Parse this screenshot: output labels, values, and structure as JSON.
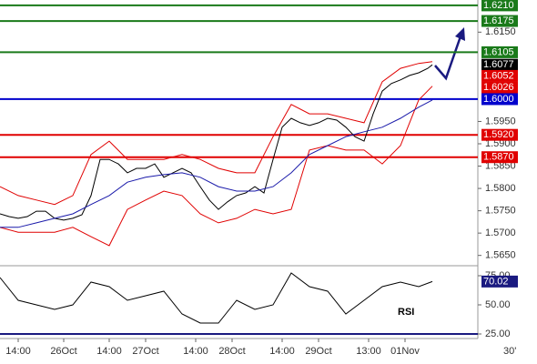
{
  "chart_data": [
    {
      "type": "line",
      "xlim": [
        0,
        105
      ],
      "ylim": [
        1.5631,
        1.6222
      ],
      "xticks": [
        {
          "value": 4,
          "label": "14:00"
        },
        {
          "value": 14,
          "label": "26Oct"
        },
        {
          "value": 24,
          "label": "14:00"
        },
        {
          "value": 32,
          "label": "27Oct"
        },
        {
          "value": 43,
          "label": "14:00"
        },
        {
          "value": 51,
          "label": "28Oct"
        },
        {
          "value": 62,
          "label": "14:00"
        },
        {
          "value": 70,
          "label": "29Oct"
        },
        {
          "value": 81,
          "label": "13:00"
        },
        {
          "value": 89,
          "label": "01Nov"
        }
      ],
      "timeframe": "30'",
      "yticks": [
        {
          "value": 1.615,
          "label": "1.6150"
        },
        {
          "value": 1.595,
          "label": "1.5950"
        },
        {
          "value": 1.59,
          "label": "1.5900"
        },
        {
          "value": 1.585,
          "label": "1.5850"
        },
        {
          "value": 1.58,
          "label": "1.5800"
        },
        {
          "value": 1.575,
          "label": "1.5750"
        },
        {
          "value": 1.57,
          "label": "1.5700"
        },
        {
          "value": 1.565,
          "label": "1.5650"
        }
      ],
      "levels": [
        {
          "value": 1.621,
          "label": "1.6210",
          "color": "#1a7a1a",
          "line": true
        },
        {
          "value": 1.6175,
          "label": "1.6175",
          "color": "#1a7a1a",
          "line": true
        },
        {
          "value": 1.6105,
          "label": "1.6105",
          "color": "#1a7a1a",
          "line": true
        },
        {
          "value": 1.6077,
          "label": "1.6077",
          "color": "#000000",
          "line": false
        },
        {
          "value": 1.6052,
          "label": "1.6052",
          "color": "#e00000",
          "line": false
        },
        {
          "value": 1.6026,
          "label": "1.6026",
          "color": "#e00000",
          "line": false
        },
        {
          "value": 1.6,
          "label": "1.6000",
          "color": "#0000cc",
          "line": true
        },
        {
          "value": 1.592,
          "label": "1.5920",
          "color": "#e00000",
          "line": true
        },
        {
          "value": 1.587,
          "label": "1.5870",
          "color": "#e00000",
          "line": true
        }
      ],
      "series": [
        {
          "color": "#000000",
          "x": [
            0,
            2,
            4,
            6,
            8,
            10,
            12,
            14,
            16,
            18,
            20,
            22,
            24,
            26,
            28,
            30,
            32,
            34,
            36,
            38,
            40,
            42,
            44,
            46,
            48,
            50,
            52,
            54,
            56,
            58,
            60,
            62,
            64,
            66,
            68,
            70,
            72,
            74,
            76,
            78,
            80,
            82,
            84,
            86,
            88,
            90,
            92,
            94,
            95
          ],
          "values": [
            1.5743,
            1.5737,
            1.5733,
            1.5737,
            1.5749,
            1.5749,
            1.5733,
            1.5729,
            1.5733,
            1.5741,
            1.5784,
            1.5865,
            1.5865,
            1.5855,
            1.5835,
            1.5845,
            1.5845,
            1.5855,
            1.5825,
            1.5835,
            1.5845,
            1.5835,
            1.5804,
            1.5774,
            1.5753,
            1.577,
            1.5784,
            1.579,
            1.5804,
            1.579,
            1.5865,
            1.5937,
            1.5957,
            1.5947,
            1.5941,
            1.5947,
            1.5957,
            1.5953,
            1.5937,
            1.5916,
            1.5906,
            1.5967,
            1.6018,
            1.6035,
            1.6043,
            1.6053,
            1.6059,
            1.6069,
            1.6077
          ]
        },
        {
          "color": "#e00000",
          "x": [
            0,
            4,
            8,
            12,
            16,
            20,
            24,
            28,
            32,
            36,
            40,
            44,
            48,
            52,
            56,
            60,
            64,
            68,
            72,
            76,
            80,
            84,
            88,
            92,
            95
          ],
          "values": [
            1.5804,
            1.5784,
            1.5774,
            1.5764,
            1.5784,
            1.5876,
            1.5906,
            1.5865,
            1.5865,
            1.5865,
            1.5876,
            1.5865,
            1.5845,
            1.5835,
            1.5835,
            1.5916,
            1.5988,
            1.5967,
            1.5967,
            1.5957,
            1.5947,
            1.6039,
            1.6069,
            1.608,
            1.6084
          ]
        },
        {
          "color": "#e00000",
          "x": [
            0,
            4,
            8,
            12,
            16,
            20,
            24,
            28,
            32,
            36,
            40,
            44,
            48,
            52,
            56,
            60,
            64,
            68,
            72,
            76,
            80,
            84,
            88,
            92,
            95
          ],
          "values": [
            1.5713,
            1.5702,
            1.5702,
            1.5702,
            1.5713,
            1.5692,
            1.5672,
            1.5753,
            1.5774,
            1.5794,
            1.5784,
            1.5743,
            1.5723,
            1.5733,
            1.5753,
            1.5743,
            1.5753,
            1.5886,
            1.5896,
            1.5886,
            1.5886,
            1.5855,
            1.5896,
            1.5998,
            1.6029
          ]
        },
        {
          "color": "#1a1aaa",
          "x": [
            0,
            4,
            8,
            12,
            16,
            20,
            24,
            28,
            32,
            36,
            40,
            44,
            48,
            52,
            56,
            60,
            64,
            68,
            72,
            76,
            80,
            84,
            88,
            92,
            95
          ],
          "values": [
            1.5713,
            1.5713,
            1.5723,
            1.5733,
            1.5743,
            1.5764,
            1.5784,
            1.5814,
            1.5825,
            1.5831,
            1.5835,
            1.5825,
            1.5804,
            1.5794,
            1.5794,
            1.5804,
            1.5835,
            1.5876,
            1.5896,
            1.5916,
            1.5927,
            1.5937,
            1.5957,
            1.5982,
            1.5998
          ]
        }
      ]
    },
    {
      "type": "line",
      "label": "RSI",
      "xlim": [
        0,
        105
      ],
      "ylim": [
        21.1,
        82.8
      ],
      "yticks": [
        {
          "value": 75,
          "label": "75.00"
        },
        {
          "value": 50,
          "label": "50.00"
        },
        {
          "value": 25,
          "label": "25.00"
        }
      ],
      "levels": [
        {
          "value": 70.02,
          "label": "70.02",
          "color": "#1a1a80",
          "line": false
        },
        {
          "value": 25,
          "color": "#1a1a80",
          "line": true
        }
      ],
      "series": [
        {
          "color": "#000000",
          "x": [
            0,
            4,
            8,
            12,
            16,
            20,
            24,
            28,
            32,
            36,
            40,
            44,
            48,
            52,
            56,
            60,
            64,
            68,
            72,
            76,
            80,
            84,
            88,
            92,
            95
          ],
          "values": [
            73.4,
            53.9,
            50.0,
            46.1,
            50.0,
            69.5,
            65.6,
            53.9,
            57.8,
            61.7,
            42.2,
            34.4,
            34.4,
            53.9,
            46.1,
            50.0,
            77.3,
            65.6,
            61.7,
            42.2,
            53.9,
            65.6,
            69.5,
            65.6,
            70.02
          ]
        }
      ]
    }
  ]
}
